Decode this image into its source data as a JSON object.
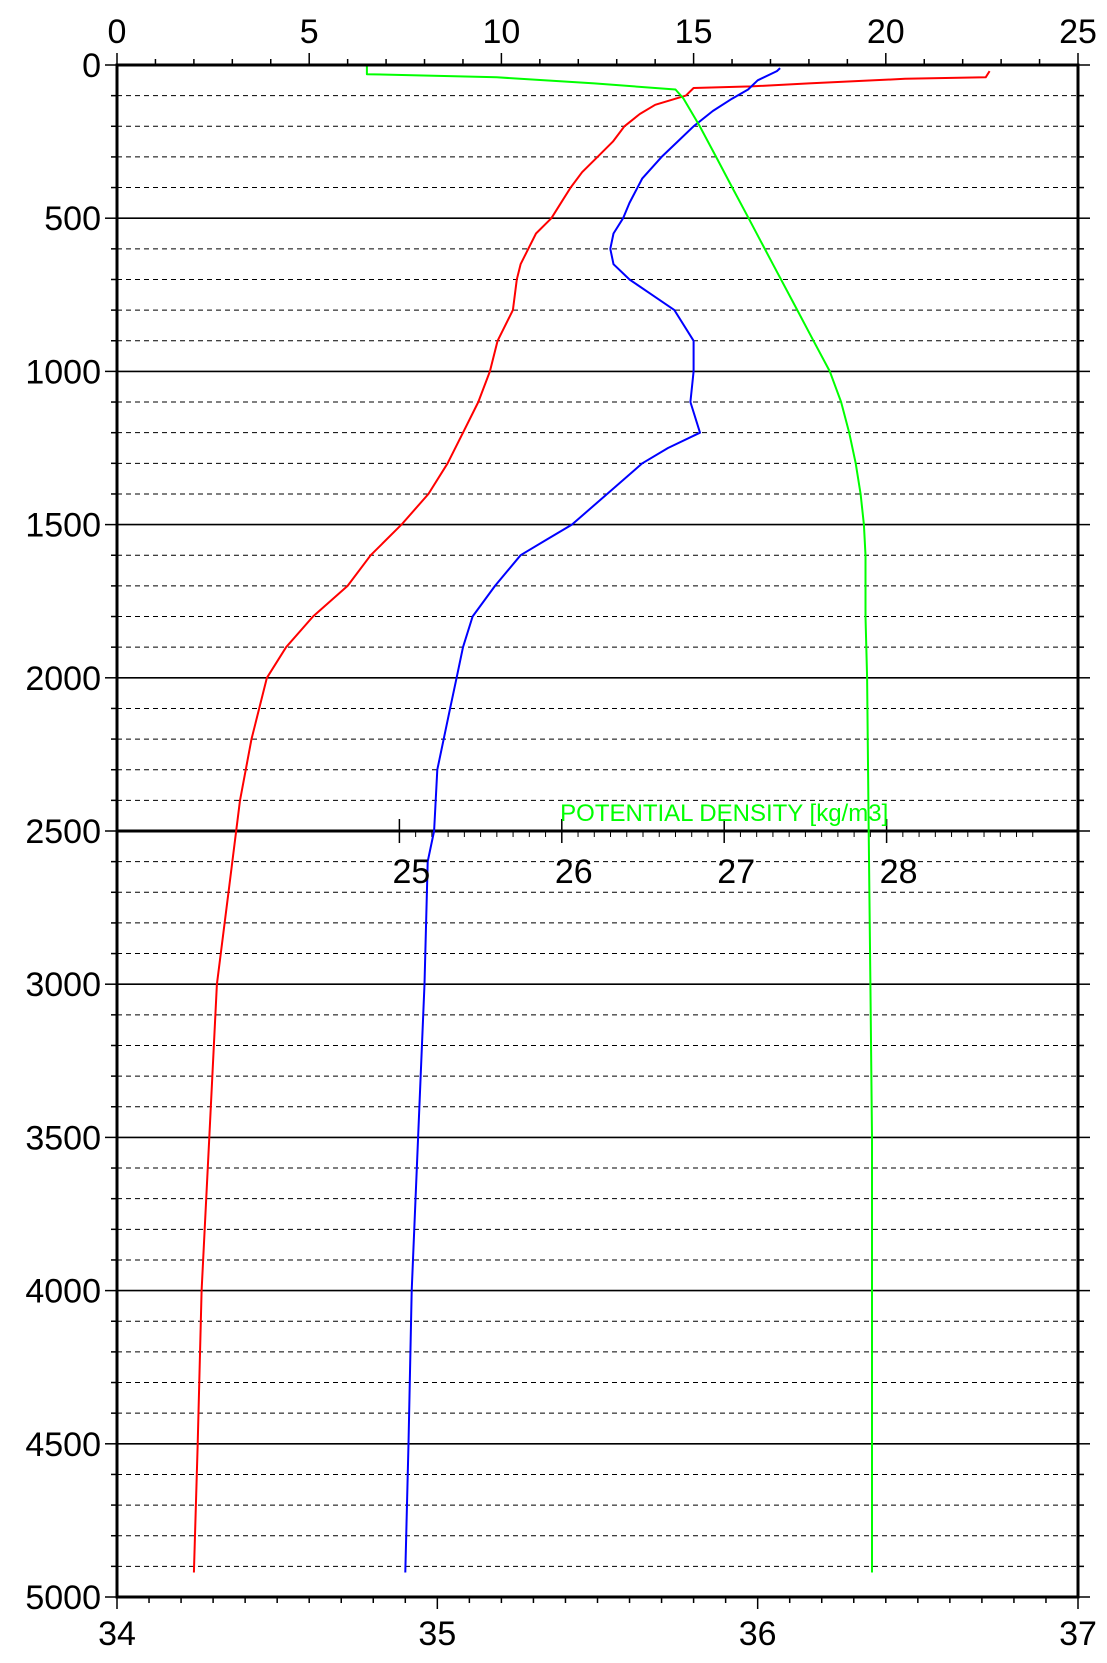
{
  "chart_data": {
    "type": "line",
    "title": "",
    "depth_axis": {
      "range": [
        0,
        5000
      ],
      "inverted": true,
      "ticks": [
        0,
        500,
        1000,
        1500,
        2000,
        2500,
        3000,
        3500,
        4000,
        4500,
        5000
      ],
      "tick_labels": [
        "0",
        "500",
        "1000",
        "1500",
        "2000",
        "2500",
        "3000",
        "3500",
        "4000",
        "4500",
        "5000"
      ],
      "minor_step": 100
    },
    "temperature_axis": {
      "position": "top",
      "range": [
        0,
        25
      ],
      "ticks": [
        0,
        5,
        10,
        15,
        20,
        25
      ],
      "tick_labels": [
        "0",
        "5",
        "10",
        "15",
        "20",
        "25"
      ],
      "minor_step": 1
    },
    "salinity_axis": {
      "position": "bottom",
      "range": [
        34,
        37
      ],
      "ticks": [
        34,
        35,
        36,
        37
      ],
      "tick_labels": [
        "34",
        "35",
        "36",
        "37"
      ],
      "minor_step": 0.1
    },
    "density_axis": {
      "position": "inside at depth 2500",
      "label": "POTENTIAL DENSITY [kg/m3]",
      "range": [
        24,
        29
      ],
      "ticks": [
        25,
        26,
        27,
        28
      ],
      "tick_labels": [
        "25",
        "26",
        "27",
        "28"
      ]
    },
    "grid": {
      "major_solid": true,
      "minor_dashed": true
    },
    "colors": {
      "temperature": "#ff0000",
      "salinity": "#0000ff",
      "density": "#00ff00",
      "axis": "#000000"
    },
    "series": [
      {
        "key": "temperature",
        "axis": "temperature",
        "color": "#ff0000",
        "points": [
          [
            22.7,
            20
          ],
          [
            22.6,
            40
          ],
          [
            20.5,
            45
          ],
          [
            18,
            60
          ],
          [
            16.5,
            70
          ],
          [
            15,
            75
          ],
          [
            14.8,
            100
          ],
          [
            14,
            130
          ],
          [
            13.6,
            160
          ],
          [
            13.2,
            200
          ],
          [
            12.9,
            250
          ],
          [
            12.5,
            300
          ],
          [
            12.1,
            350
          ],
          [
            11.8,
            400
          ],
          [
            11.6,
            440
          ],
          [
            11.3,
            500
          ],
          [
            10.9,
            550
          ],
          [
            10.7,
            600
          ],
          [
            10.5,
            650
          ],
          [
            10.4,
            700
          ],
          [
            10.3,
            800
          ],
          [
            9.9,
            900
          ],
          [
            9.7,
            1000
          ],
          [
            9.4,
            1100
          ],
          [
            9.0,
            1200
          ],
          [
            8.6,
            1300
          ],
          [
            8.1,
            1400
          ],
          [
            7.4,
            1500
          ],
          [
            6.6,
            1600
          ],
          [
            6.0,
            1700
          ],
          [
            5.1,
            1800
          ],
          [
            4.4,
            1900
          ],
          [
            3.9,
            2000
          ],
          [
            3.5,
            2200
          ],
          [
            3.2,
            2400
          ],
          [
            2.9,
            2700
          ],
          [
            2.6,
            3000
          ],
          [
            2.4,
            3500
          ],
          [
            2.2,
            4000
          ],
          [
            2.1,
            4500
          ],
          [
            2.0,
            4920
          ]
        ]
      },
      {
        "key": "salinity",
        "axis": "salinity",
        "color": "#0000ff",
        "points": [
          [
            36.07,
            10
          ],
          [
            36.06,
            20
          ],
          [
            36.0,
            50
          ],
          [
            35.97,
            80
          ],
          [
            35.92,
            110
          ],
          [
            35.86,
            150
          ],
          [
            35.8,
            200
          ],
          [
            35.75,
            250
          ],
          [
            35.7,
            300
          ],
          [
            35.64,
            370
          ],
          [
            35.6,
            450
          ],
          [
            35.58,
            500
          ],
          [
            35.55,
            550
          ],
          [
            35.54,
            600
          ],
          [
            35.55,
            650
          ],
          [
            35.6,
            700
          ],
          [
            35.67,
            750
          ],
          [
            35.74,
            800
          ],
          [
            35.8,
            900
          ],
          [
            35.8,
            1000
          ],
          [
            35.79,
            1100
          ],
          [
            35.82,
            1200
          ],
          [
            35.72,
            1250
          ],
          [
            35.64,
            1300
          ],
          [
            35.53,
            1400
          ],
          [
            35.42,
            1500
          ],
          [
            35.34,
            1550
          ],
          [
            35.26,
            1600
          ],
          [
            35.18,
            1700
          ],
          [
            35.11,
            1800
          ],
          [
            35.08,
            1900
          ],
          [
            35.06,
            2000
          ],
          [
            35.04,
            2100
          ],
          [
            35.02,
            2200
          ],
          [
            35.0,
            2300
          ],
          [
            34.99,
            2500
          ],
          [
            34.97,
            2600
          ],
          [
            34.96,
            3000
          ],
          [
            34.94,
            3500
          ],
          [
            34.92,
            4000
          ],
          [
            34.91,
            4500
          ],
          [
            34.9,
            4920
          ]
        ]
      },
      {
        "key": "density",
        "axis": "density",
        "color": "#00ff00",
        "points": [
          [
            24.8,
            0
          ],
          [
            24.8,
            30
          ],
          [
            25.6,
            40
          ],
          [
            26.2,
            60
          ],
          [
            26.7,
            80
          ],
          [
            26.75,
            110
          ],
          [
            26.85,
            200
          ],
          [
            26.95,
            300
          ],
          [
            27.05,
            400
          ],
          [
            27.15,
            500
          ],
          [
            27.3,
            650
          ],
          [
            27.45,
            800
          ],
          [
            27.55,
            900
          ],
          [
            27.65,
            1000
          ],
          [
            27.72,
            1100
          ],
          [
            27.77,
            1200
          ],
          [
            27.81,
            1300
          ],
          [
            27.84,
            1400
          ],
          [
            27.86,
            1500
          ],
          [
            27.87,
            1600
          ],
          [
            27.87,
            1800
          ],
          [
            27.88,
            2000
          ],
          [
            27.89,
            2500
          ],
          [
            27.9,
            3000
          ],
          [
            27.91,
            3500
          ],
          [
            27.91,
            4000
          ],
          [
            27.91,
            4500
          ],
          [
            27.91,
            4920
          ]
        ]
      }
    ]
  }
}
